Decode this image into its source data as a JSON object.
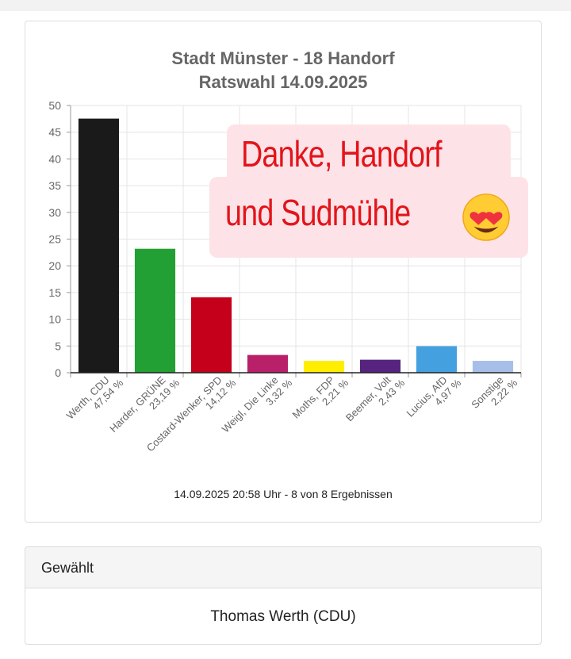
{
  "chart_data": {
    "type": "bar",
    "title": "Stadt Münster - 18 Handorf",
    "subtitle": "Ratswahl 14.09.2025",
    "categories": [
      "Werth, CDU",
      "Harder, GRÜNE",
      "Costard-Wenker, SPD",
      "Weigl, Die Linke",
      "Moths, FDP",
      "Beemer, Volt",
      "Lucius, AfD",
      "Sonstige"
    ],
    "value_labels": [
      "47,54 %",
      "23,19 %",
      "14,12 %",
      "3,32 %",
      "2,21 %",
      "2,43 %",
      "4,97 %",
      "2,22 %"
    ],
    "values": [
      47.54,
      23.19,
      14.12,
      3.32,
      2.21,
      2.43,
      4.97,
      2.22
    ],
    "colors": [
      "#1a1a1a",
      "#22a033",
      "#c4001a",
      "#b8206a",
      "#ffee00",
      "#56237f",
      "#45a0e0",
      "#a7bfe8"
    ],
    "yticks": [
      "0",
      "5",
      "10",
      "15",
      "20",
      "25",
      "30",
      "35",
      "40",
      "45",
      "50"
    ],
    "ylim": [
      0,
      50
    ],
    "grid": true,
    "legend": "none"
  },
  "timestamp": "14.09.2025 20:58 Uhr - 8 von 8 Ergebnissen",
  "banner": {
    "line1": "Danke, Handorf",
    "line2": "und Sudmühle",
    "emoji": "heart-eyes-face-emoji"
  },
  "elected": {
    "heading": "Gewählt",
    "name": "Thomas Werth (CDU)"
  }
}
